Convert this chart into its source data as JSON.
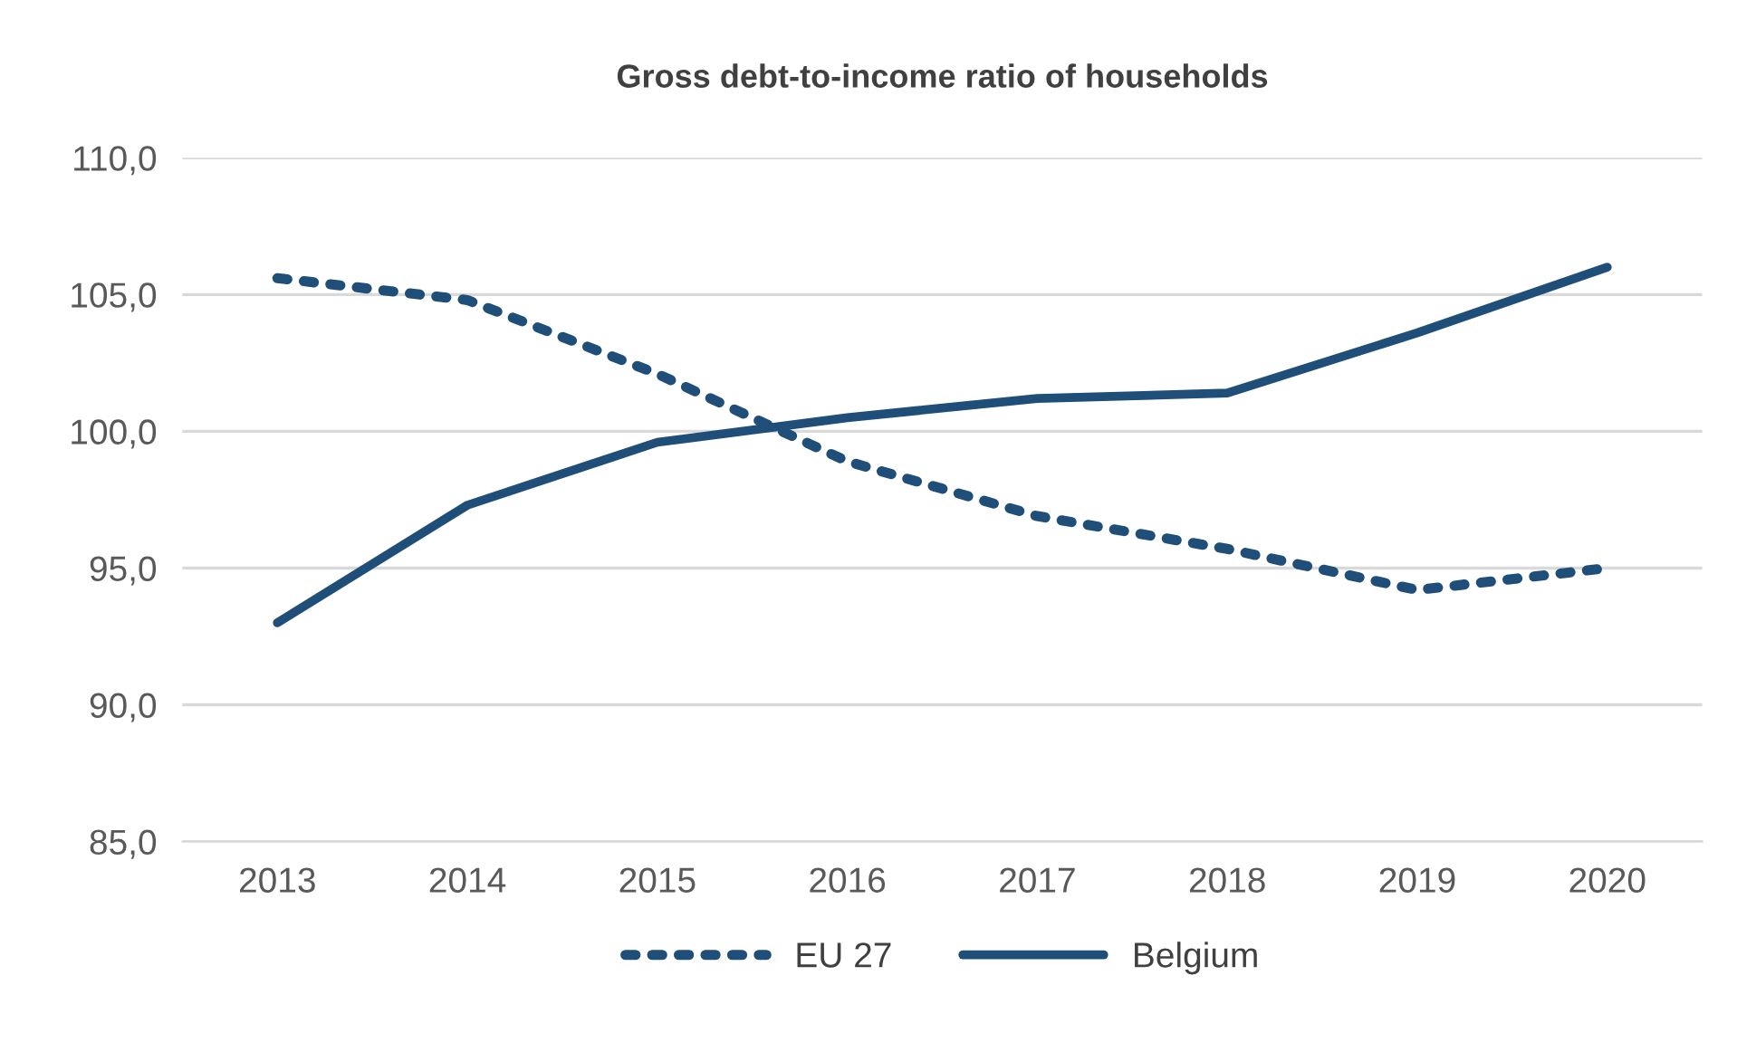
{
  "chart_data": {
    "type": "line",
    "title": "Gross debt-to-income ratio of households",
    "categories": [
      "2013",
      "2014",
      "2015",
      "2016",
      "2017",
      "2018",
      "2019",
      "2020"
    ],
    "series": [
      {
        "name": "EU 27",
        "color": "#1f4e79",
        "line_style": "dotted",
        "values": [
          105.6,
          104.8,
          102.1,
          98.9,
          96.9,
          95.7,
          94.2,
          95.0
        ]
      },
      {
        "name": "Belgium",
        "color": "#1f4e79",
        "line_style": "solid",
        "values": [
          93.0,
          97.3,
          99.6,
          100.5,
          101.2,
          101.4,
          103.6,
          106.0
        ]
      }
    ],
    "ylim": [
      85,
      110
    ],
    "yticks": [
      {
        "value": 85,
        "label": "85,0"
      },
      {
        "value": 90,
        "label": "90,0"
      },
      {
        "value": 95,
        "label": "95,0"
      },
      {
        "value": 100,
        "label": "100,0"
      },
      {
        "value": 105,
        "label": "105,0"
      },
      {
        "value": 110,
        "label": "110,0"
      }
    ],
    "grid": "y",
    "legend": "bottom",
    "marker": "none"
  }
}
